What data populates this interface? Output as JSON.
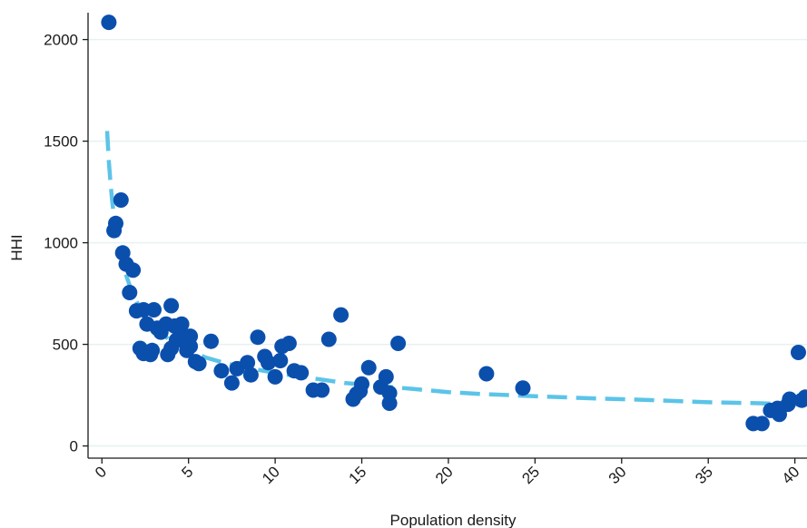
{
  "chart_data": {
    "type": "scatter",
    "title": "",
    "xlabel": "Population density",
    "ylabel": "HHI",
    "xlim": [
      -0.8,
      40.7
    ],
    "ylim": [
      -60,
      2150
    ],
    "x_ticks": [
      0,
      5,
      10,
      15,
      20,
      25,
      30,
      35,
      40
    ],
    "y_ticks": [
      0,
      500,
      1000,
      1500,
      2000
    ],
    "grid": "horizontal",
    "legend": "none",
    "colors": {
      "points": "#0b4fad",
      "fit": "#5bc4e8",
      "grid": "#e6f1f1",
      "axis": "#1a1a1a"
    },
    "series": [
      {
        "type": "scatter",
        "points": [
          [
            0.4,
            2085
          ],
          [
            1.1,
            1210
          ],
          [
            0.8,
            1095
          ],
          [
            0.7,
            1060
          ],
          [
            1.2,
            950
          ],
          [
            1.4,
            895
          ],
          [
            1.8,
            865
          ],
          [
            1.6,
            755
          ],
          [
            2.0,
            665
          ],
          [
            2.4,
            670
          ],
          [
            2.2,
            480
          ],
          [
            2.4,
            455
          ],
          [
            2.8,
            450
          ],
          [
            2.9,
            470
          ],
          [
            3.0,
            670
          ],
          [
            2.6,
            600
          ],
          [
            3.2,
            580
          ],
          [
            3.4,
            560
          ],
          [
            3.7,
            600
          ],
          [
            3.8,
            450
          ],
          [
            4.0,
            690
          ],
          [
            4.0,
            480
          ],
          [
            4.2,
            590
          ],
          [
            4.3,
            520
          ],
          [
            4.6,
            600
          ],
          [
            4.8,
            540
          ],
          [
            4.9,
            470
          ],
          [
            5.1,
            540
          ],
          [
            5.1,
            490
          ],
          [
            5.4,
            415
          ],
          [
            5.6,
            405
          ],
          [
            6.3,
            515
          ],
          [
            6.9,
            370
          ],
          [
            7.5,
            310
          ],
          [
            7.8,
            380
          ],
          [
            8.4,
            410
          ],
          [
            8.6,
            350
          ],
          [
            9.0,
            535
          ],
          [
            9.4,
            440
          ],
          [
            9.6,
            410
          ],
          [
            10.0,
            340
          ],
          [
            10.3,
            420
          ],
          [
            10.4,
            490
          ],
          [
            10.8,
            505
          ],
          [
            11.1,
            370
          ],
          [
            11.5,
            360
          ],
          [
            12.2,
            275
          ],
          [
            12.7,
            275
          ],
          [
            13.1,
            525
          ],
          [
            13.8,
            645
          ],
          [
            14.5,
            230
          ],
          [
            14.7,
            255
          ],
          [
            14.9,
            270
          ],
          [
            15.0,
            305
          ],
          [
            15.4,
            385
          ],
          [
            16.1,
            290
          ],
          [
            16.4,
            340
          ],
          [
            16.6,
            210
          ],
          [
            16.6,
            260
          ],
          [
            17.1,
            505
          ],
          [
            22.2,
            355
          ],
          [
            24.3,
            285
          ],
          [
            37.6,
            110
          ],
          [
            38.1,
            110
          ],
          [
            38.6,
            175
          ],
          [
            39.0,
            185
          ],
          [
            39.1,
            155
          ],
          [
            39.6,
            205
          ],
          [
            39.7,
            230
          ],
          [
            40.2,
            460
          ],
          [
            40.4,
            225
          ],
          [
            40.6,
            240
          ]
        ]
      },
      {
        "type": "line",
        "style": "dashed",
        "x": [
          0.3,
          0.4,
          0.5,
          0.6,
          0.7,
          0.8,
          0.9,
          1.0,
          1.2,
          1.4,
          1.6,
          1.8,
          2.0,
          2.5,
          3.0,
          3.5,
          4.0,
          5.0,
          6.0,
          7.0,
          8.0,
          10.0,
          12.0,
          14.0,
          16.0,
          18.0,
          20.0,
          22.0,
          25.0,
          28.0,
          30.0,
          32.0,
          35.0,
          38.0,
          40.0,
          40.7
        ],
        "y": [
          1550,
          1400,
          1290,
          1200,
          1130,
          1075,
          1025,
          980,
          900,
          840,
          790,
          750,
          710,
          640,
          590,
          550,
          515,
          470,
          435,
          410,
          390,
          360,
          335,
          310,
          295,
          280,
          265,
          255,
          245,
          235,
          230,
          225,
          215,
          210,
          205,
          205
        ]
      }
    ]
  }
}
